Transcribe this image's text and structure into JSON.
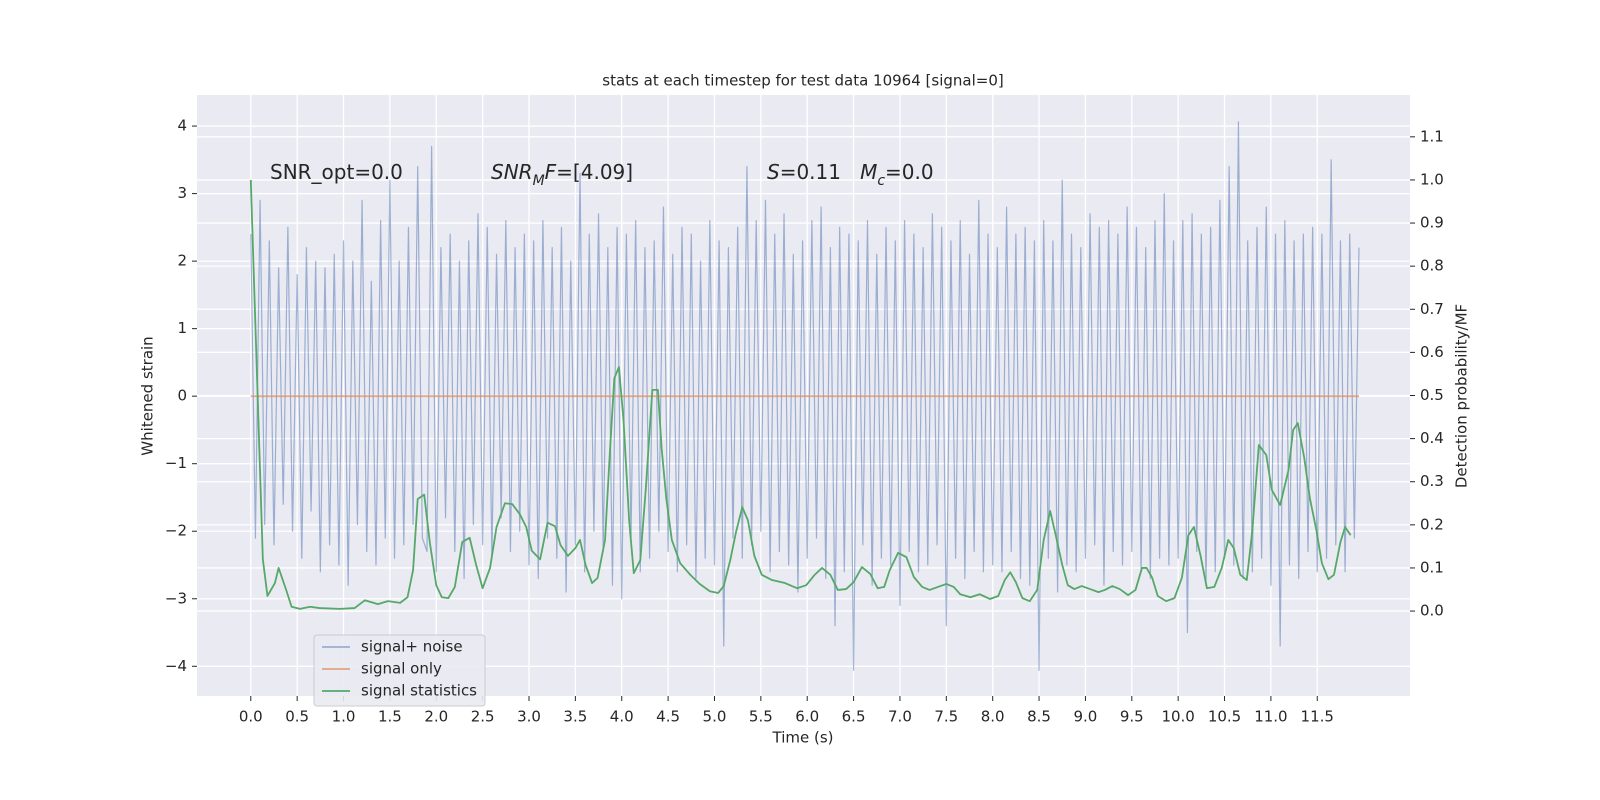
{
  "chart_data": {
    "type": "line",
    "title": "stats at each timestep for test data 10964 [signal=0]",
    "x_label": "Time (s)",
    "y_label": "Whitened strain",
    "y2_label": "Detection probability/MF",
    "xlim": [
      -0.58,
      12.5
    ],
    "ylim": [
      -4.44,
      4.46
    ],
    "y2lim": [
      -0.197,
      1.197
    ],
    "xticks": [
      {
        "value": 0,
        "label": "0.0"
      },
      0.5,
      {
        "value": 1,
        "label": "1.0"
      },
      1.5,
      {
        "value": 2,
        "label": "2.0"
      },
      2.5,
      {
        "value": 3,
        "label": "3.0"
      },
      3.5,
      {
        "value": 4,
        "label": "4.0"
      },
      4.5,
      {
        "value": 5,
        "label": "5.0"
      },
      5.5,
      {
        "value": 6,
        "label": "6.0"
      },
      6.5,
      {
        "value": 7,
        "label": "7.0"
      },
      7.5,
      {
        "value": 8,
        "label": "8.0"
      },
      8.5,
      {
        "value": 9,
        "label": "9.0"
      },
      9.5,
      {
        "value": 10,
        "label": "10.0"
      },
      10.5,
      {
        "value": 11,
        "label": "11.0"
      },
      11.5
    ],
    "yticks": [
      {
        "value": -4,
        "label": "−4"
      },
      {
        "value": -3,
        "label": "−3"
      },
      {
        "value": -2,
        "label": "−2"
      },
      {
        "value": -1,
        "label": "−1"
      },
      0,
      1,
      2,
      3,
      4
    ],
    "y2ticks": [
      {
        "value": 0,
        "label": "0.0"
      },
      0.1,
      0.2,
      0.3,
      0.4,
      0.5,
      0.6,
      0.7,
      0.8,
      0.9,
      {
        "value": 1,
        "label": "1.0"
      },
      1.1
    ],
    "grid": true,
    "background": "#eaeaf2",
    "legend_loc": "lower left",
    "annotations": [
      {
        "parts": [
          "SNR_opt=0.0"
        ]
      },
      {
        "parts": [
          "SNR",
          "M",
          "F",
          "=[4.09]"
        ]
      },
      {
        "parts": [
          "S",
          "=0.11   ",
          "M",
          "c",
          "=0.0"
        ]
      }
    ],
    "series": [
      {
        "name": "signal+ noise",
        "color": "#4c72b0",
        "opacity": 0.5,
        "x": [
          0,
          0.05,
          0.1,
          0.15,
          0.2,
          0.25,
          0.3,
          0.35,
          0.4,
          0.45,
          0.5,
          0.55,
          0.6,
          0.65,
          0.7,
          0.75,
          0.8,
          0.85,
          0.9,
          0.95,
          1,
          1.05,
          1.1,
          1.15,
          1.2,
          1.25,
          1.3,
          1.35,
          1.4,
          1.45,
          1.5,
          1.55,
          1.6,
          1.65,
          1.7,
          1.75,
          1.8,
          1.85,
          1.9,
          1.95,
          2,
          2.05,
          2.1,
          2.15,
          2.2,
          2.25,
          2.3,
          2.35,
          2.4,
          2.45,
          2.5,
          2.55,
          2.6,
          2.65,
          2.7,
          2.75,
          2.8,
          2.85,
          2.9,
          2.95,
          3,
          3.05,
          3.1,
          3.15,
          3.2,
          3.25,
          3.3,
          3.35,
          3.4,
          3.45,
          3.5,
          3.55,
          3.6,
          3.65,
          3.7,
          3.75,
          3.8,
          3.85,
          3.9,
          3.95,
          4,
          4.05,
          4.1,
          4.15,
          4.2,
          4.25,
          4.3,
          4.35,
          4.4,
          4.45,
          4.5,
          4.55,
          4.6,
          4.65,
          4.7,
          4.75,
          4.8,
          4.85,
          4.9,
          4.95,
          5,
          5.05,
          5.1,
          5.15,
          5.2,
          5.25,
          5.3,
          5.35,
          5.4,
          5.45,
          5.5,
          5.55,
          5.6,
          5.65,
          5.7,
          5.75,
          5.8,
          5.85,
          5.9,
          5.95,
          6,
          6.05,
          6.1,
          6.15,
          6.2,
          6.25,
          6.3,
          6.35,
          6.4,
          6.45,
          6.5,
          6.55,
          6.6,
          6.65,
          6.7,
          6.75,
          6.8,
          6.85,
          6.9,
          6.95,
          7,
          7.05,
          7.1,
          7.15,
          7.2,
          7.25,
          7.3,
          7.35,
          7.4,
          7.45,
          7.5,
          7.55,
          7.6,
          7.65,
          7.7,
          7.75,
          7.8,
          7.85,
          7.9,
          7.95,
          8,
          8.05,
          8.1,
          8.15,
          8.2,
          8.25,
          8.3,
          8.35,
          8.4,
          8.45,
          8.5,
          8.55,
          8.6,
          8.65,
          8.7,
          8.75,
          8.8,
          8.85,
          8.9,
          8.95,
          9,
          9.05,
          9.1,
          9.15,
          9.2,
          9.25,
          9.3,
          9.35,
          9.4,
          9.45,
          9.5,
          9.55,
          9.6,
          9.65,
          9.7,
          9.75,
          9.8,
          9.85,
          9.9,
          9.95,
          10,
          10.05,
          10.1,
          10.15,
          10.2,
          10.25,
          10.3,
          10.35,
          10.4,
          10.45,
          10.5,
          10.55,
          10.6,
          10.65,
          10.7,
          10.75,
          10.8,
          10.85,
          10.9,
          10.95,
          11,
          11.05,
          11.1,
          11.15,
          11.2,
          11.25,
          11.3,
          11.35,
          11.4,
          11.45,
          11.5,
          11.55,
          11.6,
          11.65,
          11.7,
          11.75,
          11.8,
          11.85,
          11.9,
          11.95
        ],
        "values": [
          2.4,
          -2.1,
          2.9,
          -1.9,
          2.3,
          -2.2,
          1.9,
          -1.6,
          2.5,
          -2.0,
          1.8,
          -2.4,
          2.2,
          -1.7,
          2.0,
          -2.6,
          1.9,
          -2.2,
          2.1,
          -2.5,
          2.3,
          -2.8,
          2.0,
          -1.9,
          2.9,
          -2.3,
          1.7,
          -2.5,
          2.6,
          -2.1,
          3.2,
          -2.4,
          2.0,
          -2.2,
          2.5,
          -1.9,
          3.4,
          -2.1,
          -2.3,
          3.7,
          -2.6,
          2.2,
          -1.8,
          2.4,
          -2.3,
          2.0,
          -2.7,
          2.3,
          -1.9,
          2.7,
          -2.2,
          2.5,
          -2.4,
          2.1,
          -1.8,
          2.6,
          -2.3,
          2.2,
          -2.0,
          2.4,
          -2.5,
          2.3,
          -2.7,
          2.6,
          -2.1,
          2.2,
          -2.4,
          2.5,
          -2.9,
          2.0,
          -2.2,
          3.3,
          -2.6,
          2.4,
          -2.0,
          2.7,
          -2.3,
          2.2,
          -2.8,
          2.5,
          -3.0,
          2.4,
          -2.1,
          2.6,
          -2.6,
          2.2,
          -2.4,
          2.3,
          -2.0,
          2.8,
          -2.3,
          2.1,
          -2.6,
          2.5,
          -2.2,
          2.4,
          -2.7,
          2.0,
          -2.4,
          2.6,
          -2.5,
          2.3,
          -3.7,
          2.2,
          -2.1,
          2.5,
          -2.4,
          3.4,
          -2.2,
          2.6,
          -2.0,
          2.9,
          -2.6,
          2.4,
          -2.3,
          2.7,
          -2.5,
          2.1,
          -2.9,
          2.3,
          -2.4,
          2.6,
          -2.1,
          2.8,
          -2.7,
          2.2,
          -3.4,
          2.5,
          -2.6,
          2.4,
          -4.06,
          2.3,
          -2.2,
          2.6,
          -2.8,
          2.1,
          -2.4,
          2.5,
          -2.5,
          2.3,
          -3.1,
          2.6,
          -2.3,
          2.4,
          -2.6,
          2.2,
          -2.5,
          2.7,
          -2.2,
          2.5,
          -3.4,
          2.3,
          -2.4,
          2.6,
          -2.7,
          2.1,
          -2.3,
          2.9,
          -2.6,
          2.4,
          -2.5,
          2.2,
          -2.6,
          2.8,
          -2.3,
          2.4,
          -2.7,
          2.5,
          -2.8,
          2.3,
          -4.06,
          2.6,
          -2.4,
          2.3,
          -2.9,
          3.2,
          -2.5,
          2.4,
          -2.6,
          2.2,
          -2.4,
          2.7,
          -2.2,
          2.5,
          -2.8,
          2.6,
          -2.3,
          2.4,
          -2.5,
          2.8,
          -2.3,
          2.5,
          -2.6,
          2.2,
          -2.7,
          2.6,
          -2.4,
          3.0,
          -2.5,
          2.3,
          -2.4,
          2.6,
          -3.5,
          2.7,
          -2.3,
          2.4,
          -2.8,
          2.5,
          -2.6,
          2.9,
          -2.4,
          3.4,
          -2.5,
          4.06,
          -2.7,
          2.3,
          -2.6,
          2.5,
          -2.4,
          2.8,
          -2.8,
          2.4,
          -3.7,
          2.6,
          -2.5,
          2.3,
          -2.7,
          2.4,
          -2.3,
          2.5,
          -2.6,
          2.4,
          -2.4,
          3.5,
          -2.2,
          2.3,
          -2.6,
          2.4,
          -2.1,
          2.2
        ]
      },
      {
        "name": "signal only",
        "color": "#dd8452",
        "opacity": 0.7,
        "x": [
          0,
          11.95
        ],
        "values": [
          0,
          0
        ]
      },
      {
        "name": "signal statistics",
        "color": "#55a868",
        "opacity": 1,
        "axis": "y2",
        "x": [
          0,
          0.13,
          0.18,
          0.26,
          0.3,
          0.38,
          0.44,
          0.53,
          0.64,
          0.74,
          0.96,
          1.12,
          1.23,
          1.37,
          1.48,
          1.61,
          1.69,
          1.75,
          1.8,
          1.87,
          1.93,
          2,
          2.06,
          2.13,
          2.2,
          2.28,
          2.36,
          2.43,
          2.5,
          2.58,
          2.65,
          2.74,
          2.82,
          2.9,
          2.97,
          3.03,
          3.12,
          3.2,
          3.28,
          3.34,
          3.42,
          3.5,
          3.55,
          3.61,
          3.68,
          3.74,
          3.82,
          3.87,
          3.92,
          3.97,
          4.02,
          4.08,
          4.13,
          4.2,
          4.26,
          4.33,
          4.39,
          4.43,
          4.48,
          4.54,
          4.63,
          4.74,
          4.84,
          4.95,
          5.04,
          5.1,
          5.17,
          5.23,
          5.3,
          5.36,
          5.43,
          5.51,
          5.62,
          5.76,
          5.89,
          5.99,
          6.08,
          6.16,
          6.25,
          6.33,
          6.42,
          6.5,
          6.59,
          6.68,
          6.76,
          6.83,
          6.89,
          6.98,
          7.07,
          7.15,
          7.24,
          7.32,
          7.41,
          7.5,
          7.58,
          7.65,
          7.76,
          7.86,
          7.97,
          8.06,
          8.13,
          8.19,
          8.25,
          8.32,
          8.4,
          8.48,
          8.55,
          8.62,
          8.68,
          8.75,
          8.81,
          8.88,
          8.96,
          9.05,
          9.14,
          9.21,
          9.29,
          9.37,
          9.46,
          9.54,
          9.61,
          9.66,
          9.72,
          9.78,
          9.87,
          9.96,
          10.04,
          10.11,
          10.17,
          10.24,
          10.31,
          10.39,
          10.47,
          10.54,
          10.6,
          10.67,
          10.74,
          10.8,
          10.87,
          10.95,
          11.01,
          11.1,
          11.19,
          11.24,
          11.29,
          11.36,
          11.42,
          11.49,
          11.55,
          11.62,
          11.68,
          11.75,
          11.8,
          11.86
        ],
        "values": [
          1.0,
          0.12,
          0.035,
          0.065,
          0.1,
          0.05,
          0.01,
          0.005,
          0.01,
          0.007,
          0.005,
          0.007,
          0.025,
          0.016,
          0.023,
          0.019,
          0.032,
          0.095,
          0.26,
          0.27,
          0.16,
          0.06,
          0.032,
          0.03,
          0.056,
          0.16,
          0.17,
          0.107,
          0.053,
          0.1,
          0.195,
          0.25,
          0.248,
          0.225,
          0.195,
          0.14,
          0.12,
          0.205,
          0.197,
          0.153,
          0.128,
          0.146,
          0.165,
          0.107,
          0.065,
          0.077,
          0.165,
          0.36,
          0.54,
          0.566,
          0.44,
          0.21,
          0.088,
          0.118,
          0.285,
          0.513,
          0.513,
          0.378,
          0.262,
          0.165,
          0.111,
          0.084,
          0.063,
          0.046,
          0.042,
          0.058,
          0.118,
          0.181,
          0.241,
          0.211,
          0.128,
          0.084,
          0.072,
          0.065,
          0.053,
          0.06,
          0.084,
          0.1,
          0.084,
          0.049,
          0.051,
          0.067,
          0.102,
          0.086,
          0.053,
          0.056,
          0.095,
          0.135,
          0.125,
          0.079,
          0.056,
          0.049,
          0.056,
          0.063,
          0.056,
          0.039,
          0.032,
          0.039,
          0.028,
          0.035,
          0.072,
          0.09,
          0.067,
          0.03,
          0.023,
          0.049,
          0.165,
          0.232,
          0.176,
          0.107,
          0.06,
          0.051,
          0.058,
          0.051,
          0.044,
          0.049,
          0.058,
          0.051,
          0.037,
          0.049,
          0.1,
          0.1,
          0.077,
          0.035,
          0.023,
          0.03,
          0.077,
          0.176,
          0.195,
          0.13,
          0.053,
          0.056,
          0.1,
          0.165,
          0.146,
          0.084,
          0.072,
          0.188,
          0.385,
          0.362,
          0.281,
          0.246,
          0.327,
          0.42,
          0.436,
          0.355,
          0.262,
          0.188,
          0.111,
          0.074,
          0.084,
          0.16,
          0.195,
          0.176
        ]
      }
    ]
  }
}
